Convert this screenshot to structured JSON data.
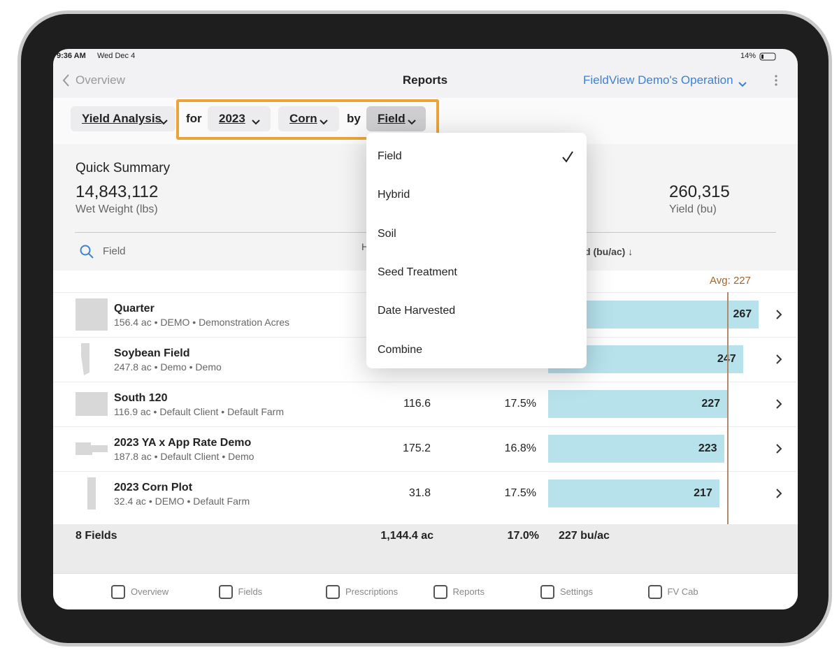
{
  "status": {
    "time": "9:36 AM",
    "date": "Wed Dec 4",
    "battery": "14%"
  },
  "nav": {
    "back": "Overview",
    "title": "Reports",
    "operation": "FieldView Demo's Operation"
  },
  "filters": {
    "report": "Yield Analysis",
    "for": "for",
    "year": "2023",
    "crop": "Corn",
    "by": "by",
    "group": "Field"
  },
  "dropdown": {
    "items": [
      "Field",
      "Hybrid",
      "Soil",
      "Seed Treatment",
      "Date Harvested",
      "Combine"
    ]
  },
  "summary": {
    "title": "Quick Summary",
    "stats": [
      {
        "value": "14,843,112",
        "label": "Wet Weight (lbs)"
      },
      {
        "value": "260,315",
        "label": "Yield (bu)"
      }
    ]
  },
  "table": {
    "search": "Field",
    "headers": [
      "H",
      "d (bu/ac) ↓"
    ],
    "average": {
      "label": "Avg: 227",
      "value": 227
    },
    "rows": [
      {
        "name": "Quarter",
        "details": "156.4 ac • DEMO • Demonstration Acres",
        "yield": 267
      },
      {
        "name": "Soybean Field",
        "details": "247.8 ac • Demo • Demo",
        "yield": 247
      },
      {
        "name": "South 120",
        "details": "116.9 ac • Default Client • Default Farm",
        "area": "116.6",
        "moisture": "17.5%",
        "yield": 227
      },
      {
        "name": "2023 YA x App Rate Demo",
        "details": "187.8 ac • Default Client • Demo",
        "area": "175.2",
        "moisture": "16.8%",
        "yield": 223
      },
      {
        "name": "2023 Corn Plot",
        "details": "32.4 ac • DEMO • Default Farm",
        "area": "31.8",
        "moisture": "17.5%",
        "yield": 217
      }
    ],
    "footer": [
      "8 Fields",
      "1,144.4 ac",
      "17.0%",
      "227 bu/ac"
    ]
  },
  "tabs": [
    "Overview",
    "Fields",
    "Prescriptions",
    "Reports",
    "Settings",
    "FV Cab"
  ]
}
